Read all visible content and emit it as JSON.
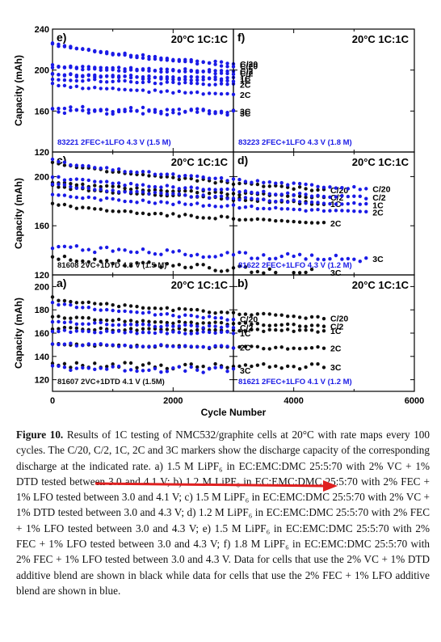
{
  "figure": {
    "y_axis_label": "Capacity (mAh)",
    "x_axis_label": "Cycle Number",
    "x_ticks": [
      "0",
      "2000",
      "4000",
      "6000"
    ],
    "panel_colors": {
      "black": "#111111",
      "blue": "#1a1ae6"
    },
    "rate_labels": [
      "C/20",
      "C/2",
      "1C",
      "2C",
      "3C"
    ]
  },
  "chart_data": [
    {
      "panel": "e",
      "type": "scatter",
      "color": "#1a1ae6",
      "title": "20°C 1C:1C",
      "annotation": "83221 2FEC+1LFO 4.3 V (1.5 M)",
      "ylim": [
        120,
        240
      ],
      "yticks": [
        120,
        160,
        200,
        240
      ],
      "xlim": [
        0,
        3000
      ],
      "series": [
        {
          "name": "C/20",
          "start": 226,
          "end": 206
        },
        {
          "name": "C/2",
          "start": 204,
          "end": 199
        },
        {
          "name": "1C",
          "start": 196,
          "end": 192
        },
        {
          "name": "2C",
          "start": 192,
          "end": 186
        },
        {
          "name": "3C",
          "start": 163,
          "end": 160
        }
      ]
    },
    {
      "panel": "f",
      "type": "scatter",
      "color": "#1a1ae6",
      "title": "20°C 1C:1C",
      "annotation": "83223 2FEC+1LFO 4.3 V (1.8 M)",
      "ylim": [
        120,
        240
      ],
      "yticks": [
        120,
        160,
        200,
        240
      ],
      "xlim": [
        0,
        3000
      ],
      "series": [
        {
          "name": "C/20",
          "start": 226,
          "end": 204
        },
        {
          "name": "C/2",
          "start": 203,
          "end": 197
        },
        {
          "name": "1C",
          "start": 196,
          "end": 190
        },
        {
          "name": "2C",
          "start": 186,
          "end": 176
        },
        {
          "name": "3C",
          "start": 160,
          "end": 158
        }
      ]
    },
    {
      "panel": "c",
      "type": "scatter",
      "color": "#111111",
      "title": "20°C 1C:1C",
      "annotation": "81608 2VC+1DTD 4.3 V (1.5 M)",
      "ylim": [
        120,
        220
      ],
      "yticks": [
        120,
        160,
        200
      ],
      "xlim": [
        0,
        4500
      ],
      "series": [
        {
          "name": "C/20",
          "start": 212,
          "end": 189
        },
        {
          "name": "C/2",
          "start": 196,
          "end": 183
        },
        {
          "name": "1C",
          "start": 193,
          "end": 178
        },
        {
          "name": "2C",
          "start": 178,
          "end": 162
        },
        {
          "name": "3C",
          "start": 134,
          "end": 122
        }
      ]
    },
    {
      "panel": "d",
      "type": "scatter",
      "color": "#1a1ae6",
      "title": "20°C 1C:1C",
      "annotation": "81622 2FEC+1LFO 4.3 V (1.2 M)",
      "ylim": [
        120,
        220
      ],
      "yticks": [
        120,
        160,
        200
      ],
      "xlim": [
        0,
        5200
      ],
      "series": [
        {
          "name": "C/20",
          "start": 213,
          "end": 190
        },
        {
          "name": "C/2",
          "start": 200,
          "end": 183
        },
        {
          "name": "1C",
          "start": 194,
          "end": 177
        },
        {
          "name": "2C",
          "start": 186,
          "end": 171
        },
        {
          "name": "3C",
          "start": 143,
          "end": 133
        }
      ]
    },
    {
      "panel": "a",
      "type": "scatter",
      "color": "#111111",
      "title": "20°C 1C:1C",
      "annotation": "81607 2VC+1DTD 4.1 V (1.5M)",
      "ylim": [
        110,
        210
      ],
      "yticks": [
        120,
        140,
        160,
        180,
        200
      ],
      "xlim": [
        0,
        4500
      ],
      "series": [
        {
          "name": "C/20",
          "start": 190,
          "end": 173
        },
        {
          "name": "C/2",
          "start": 174,
          "end": 166
        },
        {
          "name": "1C",
          "start": 164,
          "end": 162
        },
        {
          "name": "2C",
          "start": 150,
          "end": 147
        },
        {
          "name": "3C",
          "start": 133,
          "end": 131
        }
      ]
    },
    {
      "panel": "b",
      "type": "scatter",
      "color": "#1a1ae6",
      "title": "20°C 1C:1C",
      "annotation": "81621 2FEC+1LFO 4.1 V (1.2 M)",
      "ylim": [
        110,
        210
      ],
      "yticks": [
        120,
        140,
        160,
        180,
        200
      ],
      "xlim": [
        0,
        3000
      ],
      "series": [
        {
          "name": "C/20",
          "start": 186,
          "end": 172
        },
        {
          "name": "C/2",
          "start": 170,
          "end": 165
        },
        {
          "name": "1C",
          "start": 162,
          "end": 160
        },
        {
          "name": "2C",
          "start": 151,
          "end": 148
        },
        {
          "name": "3C",
          "start": 131,
          "end": 128
        }
      ]
    }
  ],
  "caption": {
    "label": "Figure 10.",
    "text": " Results of 1C testing of NMC532/graphite cells at 20°C with rate maps every 100 cycles. The C/20, C/2, 1C, 2C and 3C markers show the discharge capacity of the corresponding discharge at the indicated rate. a) 1.5 M LiPF₆ in EC:EMC:DMC 25:5:70 with 2% VC + 1% DTD tested between 3.0 and 4.1 V; b) 1.2 M LiPF₆ in EC:EMC:DMC 25:5:70 with 2% FEC + 1% LFO tested between 3.0 and 4.1 V; c) 1.5 M LiPF₆ in EC:EMC:DMC 25:5:70 with 2% VC + 1% DTD tested between 3.0 and 4.3 V; d) 1.2 M LiPF₆ in EC:EMC:DMC 25:5:70 with 2% FEC + 1% LFO tested between 3.0 and 4.3 V; e) 1.5 M LiPF₆ in EC:EMC:DMC 25:5:70 with 2% FEC + 1% LFO tested between 3.0 and 4.3 V; f) 1.8 M LiPF₆ in EC:EMC:DMC 25:5:70 with 2% FEC + 1% LFO tested between 3.0 and 4.3 V. Data for cells that use the 2% VC + 1% DTD additive blend are shown in black while data for cells that use the 2% FEC + 1% LFO additive blend are shown in blue."
  },
  "annotation_arrow": {
    "color": "#e02020"
  }
}
